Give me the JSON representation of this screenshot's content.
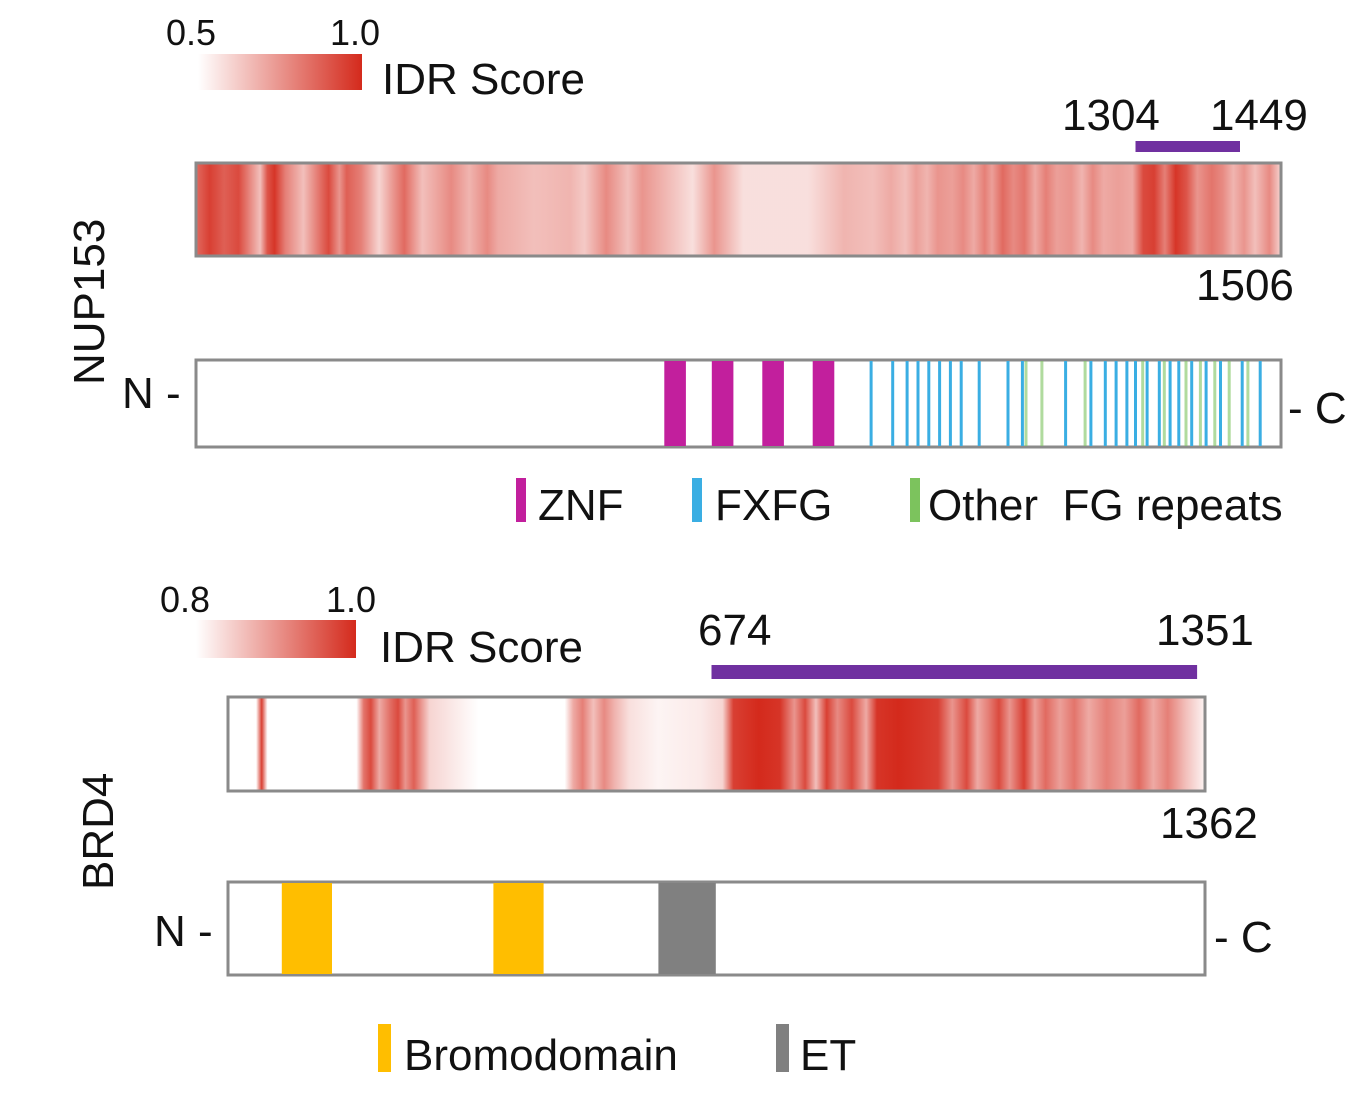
{
  "colors": {
    "idr_high": "#d42a1c",
    "region_bar": "#7030a0",
    "znf": "#c21f9d",
    "fxfg": "#3aaee3",
    "other_fg": "#7cc35d",
    "bromodomain": "#ffbe00",
    "et": "#808080",
    "track_border": "#8a8a8a"
  },
  "nup153": {
    "protein_label": "NUP153",
    "length": 1506,
    "length_label": "1506",
    "idr_scale": {
      "min_label": "0.5",
      "max_label": "1.0",
      "title": "IDR Score"
    },
    "region": {
      "start": 1304,
      "end": 1449,
      "start_label": "1304",
      "end_label": "1449"
    },
    "n_label": "N -",
    "c_label": "- C",
    "idr_profile": [
      [
        1,
        0.7
      ],
      [
        20,
        0.9
      ],
      [
        40,
        0.75
      ],
      [
        60,
        0.85
      ],
      [
        90,
        0.3
      ],
      [
        100,
        0.8
      ],
      [
        110,
        0.95
      ],
      [
        125,
        0.6
      ],
      [
        150,
        0.3
      ],
      [
        175,
        0.7
      ],
      [
        185,
        0.85
      ],
      [
        200,
        0.5
      ],
      [
        210,
        0.75
      ],
      [
        230,
        0.6
      ],
      [
        255,
        0.2
      ],
      [
        275,
        0.5
      ],
      [
        290,
        0.7
      ],
      [
        315,
        0.3
      ],
      [
        340,
        0.45
      ],
      [
        355,
        0.55
      ],
      [
        380,
        0.35
      ],
      [
        405,
        0.55
      ],
      [
        420,
        0.4
      ],
      [
        470,
        0.3
      ],
      [
        520,
        0.35
      ],
      [
        540,
        0.25
      ],
      [
        570,
        0.55
      ],
      [
        600,
        0.3
      ],
      [
        620,
        0.5
      ],
      [
        650,
        0.35
      ],
      [
        690,
        0.15
      ],
      [
        720,
        0.5
      ],
      [
        760,
        0.15
      ],
      [
        850,
        0.15
      ],
      [
        900,
        0.35
      ],
      [
        940,
        0.3
      ],
      [
        965,
        0.4
      ],
      [
        985,
        0.3
      ],
      [
        1000,
        0.45
      ],
      [
        1015,
        0.35
      ],
      [
        1030,
        0.5
      ],
      [
        1050,
        0.45
      ],
      [
        1065,
        0.55
      ],
      [
        1080,
        0.4
      ],
      [
        1095,
        0.6
      ],
      [
        1105,
        0.45
      ],
      [
        1120,
        0.7
      ],
      [
        1135,
        0.55
      ],
      [
        1150,
        0.65
      ],
      [
        1165,
        0.4
      ],
      [
        1180,
        0.6
      ],
      [
        1195,
        0.45
      ],
      [
        1215,
        0.5
      ],
      [
        1230,
        0.35
      ],
      [
        1245,
        0.55
      ],
      [
        1260,
        0.4
      ],
      [
        1280,
        0.45
      ],
      [
        1300,
        0.4
      ],
      [
        1315,
        0.85
      ],
      [
        1330,
        0.9
      ],
      [
        1345,
        0.6
      ],
      [
        1360,
        0.95
      ],
      [
        1375,
        0.8
      ],
      [
        1390,
        0.5
      ],
      [
        1410,
        0.65
      ],
      [
        1425,
        0.55
      ],
      [
        1440,
        0.35
      ],
      [
        1455,
        0.5
      ],
      [
        1470,
        0.3
      ],
      [
        1490,
        0.55
      ],
      [
        1506,
        0.2
      ]
    ],
    "domains": [
      {
        "type": "ZNF",
        "positions": [
          650,
          716,
          786,
          856
        ],
        "width": 30
      },
      {
        "type": "FXFG",
        "positions": [
          935,
          965,
          985,
          1000,
          1015,
          1030,
          1045,
          1060,
          1085,
          1125,
          1145,
          1205,
          1240,
          1260,
          1275,
          1290,
          1302,
          1318,
          1335,
          1350,
          1362,
          1380,
          1400,
          1420,
          1450,
          1475
        ]
      },
      {
        "type": "Other FG repeats",
        "positions": [
          1150,
          1172,
          1232,
          1312,
          1342,
          1372,
          1392,
          1412,
          1432,
          1458
        ]
      }
    ],
    "legend": [
      {
        "label": "ZNF",
        "color": "#c21f9d"
      },
      {
        "label": "FXFG",
        "color": "#3aaee3"
      },
      {
        "label": "Other  FG repeats",
        "color": "#7cc35d"
      }
    ]
  },
  "brd4": {
    "protein_label": "BRD4",
    "length": 1362,
    "length_label": "1362",
    "idr_scale": {
      "min_label": "0.8",
      "max_label": "1.0",
      "title": "IDR Score"
    },
    "region": {
      "start": 674,
      "end": 1351,
      "start_label": "674",
      "end_label": "1351"
    },
    "n_label": "N -",
    "c_label": "- C",
    "idr_profile": [
      [
        1,
        0.0
      ],
      [
        40,
        0.0
      ],
      [
        48,
        0.9
      ],
      [
        56,
        0.0
      ],
      [
        180,
        0.0
      ],
      [
        190,
        0.65
      ],
      [
        200,
        0.85
      ],
      [
        212,
        0.4
      ],
      [
        228,
        0.7
      ],
      [
        238,
        0.85
      ],
      [
        248,
        0.5
      ],
      [
        260,
        0.75
      ],
      [
        270,
        0.5
      ],
      [
        282,
        0.2
      ],
      [
        350,
        0.0
      ],
      [
        470,
        0.0
      ],
      [
        482,
        0.4
      ],
      [
        495,
        0.6
      ],
      [
        510,
        0.3
      ],
      [
        525,
        0.55
      ],
      [
        540,
        0.35
      ],
      [
        560,
        0.15
      ],
      [
        600,
        0.05
      ],
      [
        660,
        0.1
      ],
      [
        690,
        0.2
      ],
      [
        705,
        0.9
      ],
      [
        740,
        1.0
      ],
      [
        770,
        0.95
      ],
      [
        790,
        0.5
      ],
      [
        805,
        0.85
      ],
      [
        820,
        0.3
      ],
      [
        835,
        0.9
      ],
      [
        850,
        0.55
      ],
      [
        870,
        0.85
      ],
      [
        890,
        0.4
      ],
      [
        905,
        0.95
      ],
      [
        935,
        1.0
      ],
      [
        965,
        0.95
      ],
      [
        990,
        0.9
      ],
      [
        1010,
        0.5
      ],
      [
        1030,
        0.85
      ],
      [
        1045,
        0.4
      ],
      [
        1060,
        0.6
      ],
      [
        1075,
        0.85
      ],
      [
        1090,
        0.5
      ],
      [
        1110,
        0.9
      ],
      [
        1125,
        0.45
      ],
      [
        1140,
        0.7
      ],
      [
        1160,
        0.45
      ],
      [
        1180,
        0.65
      ],
      [
        1200,
        0.4
      ],
      [
        1225,
        0.6
      ],
      [
        1250,
        0.45
      ],
      [
        1270,
        0.7
      ],
      [
        1290,
        0.4
      ],
      [
        1310,
        0.6
      ],
      [
        1335,
        0.3
      ],
      [
        1362,
        0.05
      ]
    ],
    "domains": [
      {
        "type": "Bromodomain",
        "start": 75,
        "end": 145
      },
      {
        "type": "Bromodomain",
        "start": 370,
        "end": 440
      },
      {
        "type": "ET",
        "start": 600,
        "end": 680
      }
    ],
    "legend": [
      {
        "label": "Bromodomain",
        "color": "#ffbe00"
      },
      {
        "label": "ET",
        "color": "#808080"
      }
    ]
  }
}
